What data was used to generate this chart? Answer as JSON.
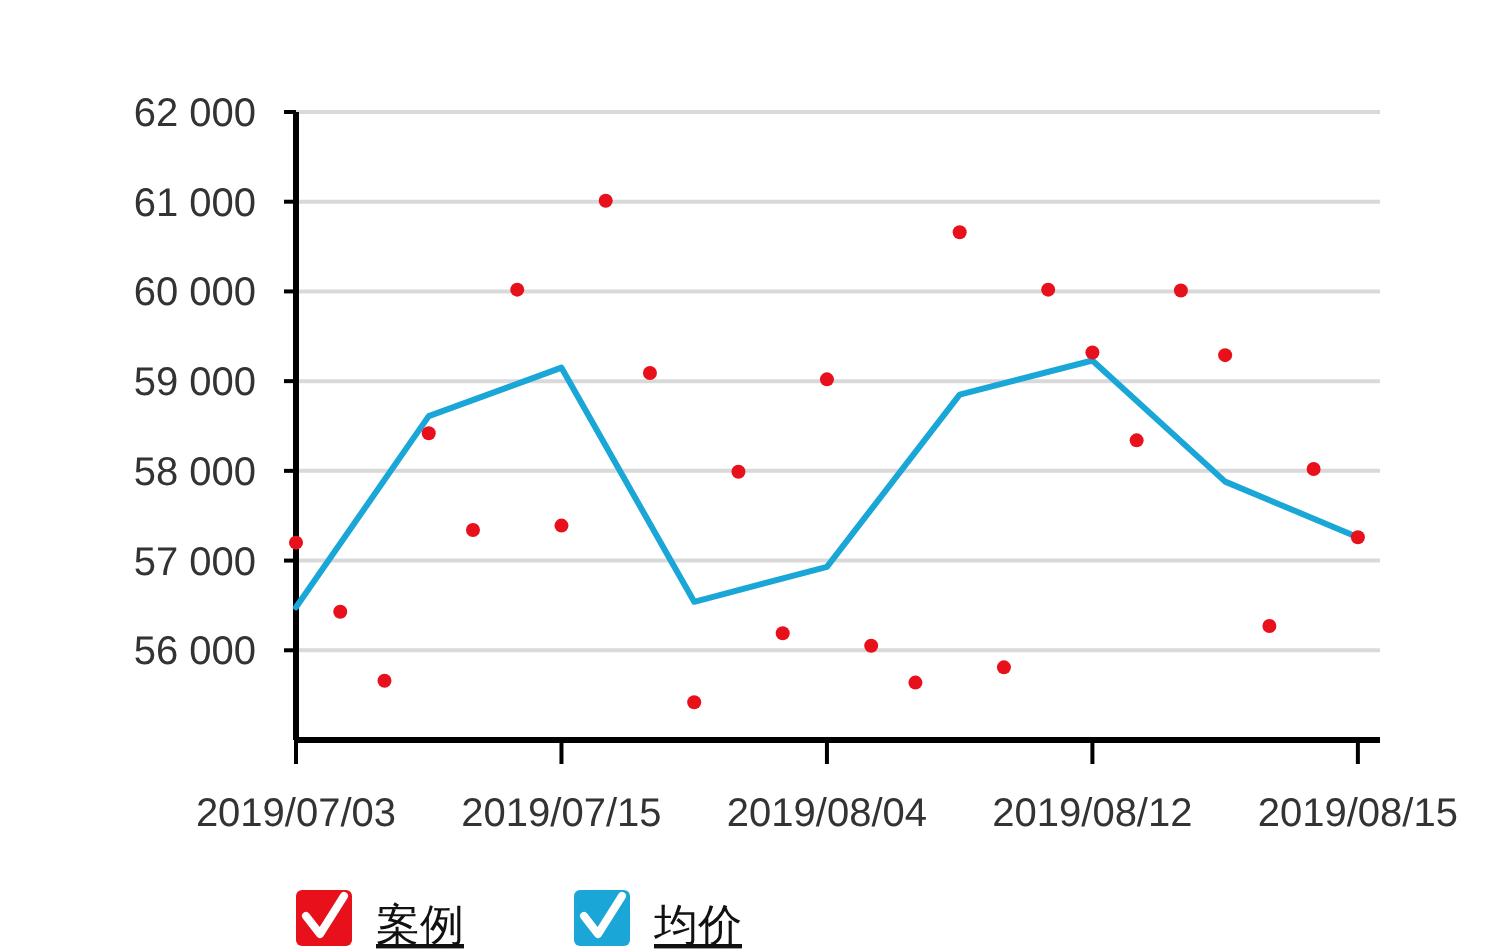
{
  "chart_data": {
    "type": "scatter",
    "categories": [
      "2019/07/03",
      null,
      null,
      null,
      null,
      null,
      "2019/07/15",
      null,
      null,
      null,
      null,
      null,
      "2019/08/04",
      null,
      null,
      null,
      null,
      null,
      "2019/08/12",
      null,
      null,
      null,
      null,
      null,
      "2019/08/15"
    ],
    "series": [
      {
        "name": "案例",
        "marker": "circle",
        "color": "#e8101a",
        "values": [
          57200,
          56430,
          55660,
          58420,
          57340,
          60020,
          57390,
          61010,
          59090,
          55420,
          57990,
          56190,
          59020,
          56050,
          55640,
          60660,
          55810,
          60020,
          59320,
          58340,
          60010,
          59290,
          56270,
          58020,
          57260
        ]
      },
      {
        "name": "均价",
        "type": "line",
        "marker": "none",
        "color": "#1aa7d8",
        "values": [
          56480,
          null,
          null,
          58610,
          null,
          null,
          59150,
          null,
          null,
          56540,
          null,
          null,
          56930,
          null,
          null,
          58850,
          null,
          null,
          59230,
          null,
          null,
          57880,
          null,
          null,
          57260
        ]
      }
    ],
    "ylim": [
      55000,
      62000
    ],
    "yticks": [
      {
        "value": 56000,
        "label": "56 000"
      },
      {
        "value": 57000,
        "label": "57 000"
      },
      {
        "value": 58000,
        "label": "58 000"
      },
      {
        "value": 59000,
        "label": "59 000"
      },
      {
        "value": 60000,
        "label": "60 000"
      },
      {
        "value": 61000,
        "label": "61 000"
      },
      {
        "value": 62000,
        "label": "62 000"
      }
    ],
    "grid": "y",
    "legend": "bottom"
  }
}
